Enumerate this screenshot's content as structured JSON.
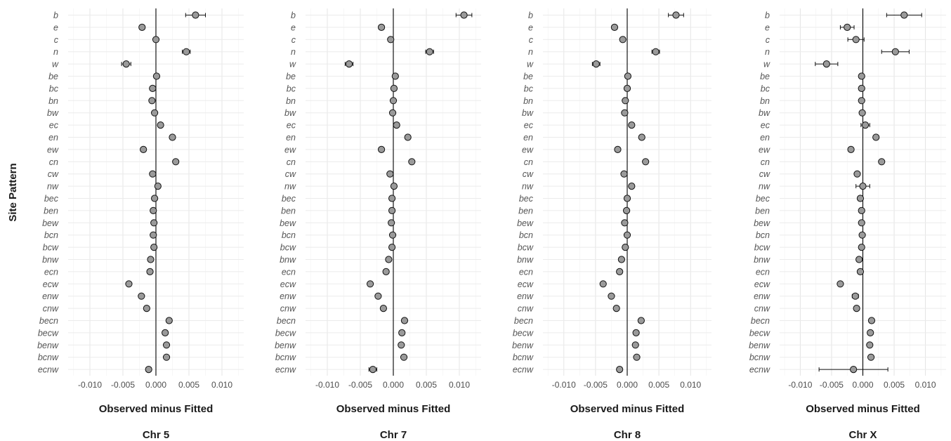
{
  "figure": {
    "ylabel": "Site Pattern",
    "xlabel": "Observed minus Fitted"
  },
  "chart_data": [
    {
      "type": "scatter",
      "title": "Chr 5",
      "xlabel": "Observed minus Fitted",
      "ylabel": "Site Pattern",
      "xlim": [
        -0.0133,
        0.0133
      ],
      "xticks": [
        -0.01,
        -0.005,
        0.0,
        0.005,
        0.01
      ],
      "xtick_labels": [
        "-0.010",
        "-0.005",
        "0.000",
        "0.005",
        "0.010"
      ],
      "grid": true,
      "categories": [
        "b",
        "e",
        "c",
        "n",
        "w",
        "be",
        "bc",
        "bn",
        "bw",
        "ec",
        "en",
        "ew",
        "cn",
        "cw",
        "nw",
        "bec",
        "ben",
        "bew",
        "bcn",
        "bcw",
        "bnw",
        "ecn",
        "ecw",
        "enw",
        "cnw",
        "becn",
        "becw",
        "benw",
        "bcnw",
        "ecnw"
      ],
      "values": [
        0.006,
        -0.0021,
        0.0,
        0.0046,
        -0.0045,
        0.0001,
        -0.0005,
        -0.0006,
        -0.0002,
        0.0007,
        0.0025,
        -0.0019,
        0.003,
        -0.0005,
        0.0003,
        -0.0002,
        -0.0004,
        -0.0003,
        -0.0004,
        -0.0003,
        -0.0008,
        -0.0009,
        -0.0041,
        -0.0022,
        -0.0014,
        0.002,
        0.0014,
        0.0016,
        0.0016,
        -0.0011
      ],
      "errors": [
        0.0015,
        0.0004,
        0.0003,
        0.0006,
        0.0007,
        0.0002,
        0.0002,
        0.0002,
        0.0002,
        0.0002,
        0.0003,
        0.0003,
        0.0003,
        0.0002,
        0.0002,
        0.0002,
        0.0002,
        0.0002,
        0.0002,
        0.0002,
        0.0002,
        0.0002,
        0.0003,
        0.0003,
        0.0003,
        0.0003,
        0.0002,
        0.0002,
        0.0002,
        0.0004
      ]
    },
    {
      "type": "scatter",
      "title": "Chr 7",
      "xlabel": "Observed minus Fitted",
      "ylabel": "Site Pattern",
      "xlim": [
        -0.0133,
        0.0133
      ],
      "xticks": [
        -0.01,
        -0.005,
        0.0,
        0.005,
        0.01
      ],
      "xtick_labels": [
        "-0.010",
        "-0.005",
        "0.000",
        "0.005",
        "0.010"
      ],
      "grid": true,
      "categories": [
        "b",
        "e",
        "c",
        "n",
        "w",
        "be",
        "bc",
        "bn",
        "bw",
        "ec",
        "en",
        "ew",
        "cn",
        "cw",
        "nw",
        "bec",
        "ben",
        "bew",
        "bcn",
        "bcw",
        "bnw",
        "ecn",
        "ecw",
        "enw",
        "cnw",
        "becn",
        "becw",
        "benw",
        "bcnw",
        "ecnw"
      ],
      "values": [
        0.0107,
        -0.0018,
        -0.0004,
        0.0055,
        -0.0067,
        0.0003,
        0.0001,
        0.0,
        -0.0001,
        0.0005,
        0.0022,
        -0.0018,
        0.0028,
        -0.0005,
        0.0001,
        -0.0002,
        -0.0002,
        -0.0003,
        -0.0001,
        -0.0002,
        -0.0007,
        -0.0011,
        -0.0035,
        -0.0023,
        -0.0015,
        0.0017,
        0.0013,
        0.0012,
        0.0016,
        -0.0031
      ],
      "errors": [
        0.0012,
        0.0004,
        0.0003,
        0.0006,
        0.0006,
        0.0002,
        0.0002,
        0.0002,
        0.0002,
        0.0002,
        0.0003,
        0.0003,
        0.0003,
        0.0002,
        0.0002,
        0.0002,
        0.0002,
        0.0002,
        0.0002,
        0.0002,
        0.0002,
        0.0002,
        0.0003,
        0.0003,
        0.0003,
        0.0003,
        0.0002,
        0.0002,
        0.0002,
        0.0006
      ]
    },
    {
      "type": "scatter",
      "title": "Chr 8",
      "xlabel": "Observed minus Fitted",
      "ylabel": "Site Pattern",
      "xlim": [
        -0.0133,
        0.0133
      ],
      "xticks": [
        -0.01,
        -0.005,
        0.0,
        0.005,
        0.01
      ],
      "xtick_labels": [
        "-0.010",
        "-0.005",
        "0.000",
        "0.005",
        "0.010"
      ],
      "grid": true,
      "categories": [
        "b",
        "e",
        "c",
        "n",
        "w",
        "be",
        "bc",
        "bn",
        "bw",
        "ec",
        "en",
        "ew",
        "cn",
        "cw",
        "nw",
        "bec",
        "ben",
        "bew",
        "bcn",
        "bcw",
        "bnw",
        "ecn",
        "ecw",
        "enw",
        "cnw",
        "becn",
        "becw",
        "benw",
        "bcnw",
        "ecnw"
      ],
      "values": [
        0.0077,
        -0.002,
        -0.0007,
        0.0045,
        -0.0049,
        0.0001,
        0.0,
        -0.0003,
        -0.0004,
        0.0007,
        0.0023,
        -0.0015,
        0.0029,
        -0.0005,
        0.0007,
        0.0,
        -0.0001,
        -0.0004,
        0.0,
        -0.0003,
        -0.0009,
        -0.0012,
        -0.0038,
        -0.0025,
        -0.0017,
        0.0022,
        0.0014,
        0.0013,
        0.0015,
        -0.0012
      ],
      "errors": [
        0.0012,
        0.0004,
        0.0004,
        0.0006,
        0.0006,
        0.0002,
        0.0002,
        0.0002,
        0.0002,
        0.0002,
        0.0003,
        0.0003,
        0.0003,
        0.0002,
        0.0002,
        0.0002,
        0.0002,
        0.0002,
        0.0002,
        0.0002,
        0.0002,
        0.0002,
        0.0003,
        0.0003,
        0.0003,
        0.0003,
        0.0002,
        0.0002,
        0.0002,
        0.0004
      ]
    },
    {
      "type": "scatter",
      "title": "Chr X",
      "xlabel": "Observed minus Fitted",
      "ylabel": "Site Pattern",
      "xlim": [
        -0.0133,
        0.0133
      ],
      "xticks": [
        -0.01,
        -0.005,
        0.0,
        0.005,
        0.01
      ],
      "xtick_labels": [
        "-0.010",
        "-0.005",
        "0.000",
        "0.005",
        "0.010"
      ],
      "grid": true,
      "categories": [
        "b",
        "e",
        "c",
        "n",
        "w",
        "be",
        "bc",
        "bn",
        "bw",
        "ec",
        "en",
        "ew",
        "cn",
        "cw",
        "nw",
        "bec",
        "ben",
        "bew",
        "bcn",
        "bcw",
        "bnw",
        "ecn",
        "ecw",
        "enw",
        "cnw",
        "becn",
        "becw",
        "benw",
        "bcnw",
        "ecnw"
      ],
      "values": [
        0.0066,
        -0.0025,
        -0.0011,
        0.0052,
        -0.0058,
        -0.0002,
        -0.0002,
        -0.0002,
        -0.0001,
        0.0004,
        0.0021,
        -0.0019,
        0.003,
        -0.0009,
        0.0,
        -0.0004,
        -0.0002,
        -0.0002,
        -0.0001,
        -0.0002,
        -0.0006,
        -0.0004,
        -0.0036,
        -0.0012,
        -0.001,
        0.0014,
        0.0012,
        0.0011,
        0.0013,
        -0.0015
      ],
      "errors": [
        0.0028,
        0.0011,
        0.0013,
        0.0022,
        0.0018,
        0.0002,
        0.0002,
        0.0002,
        0.0002,
        0.0007,
        0.0003,
        0.0003,
        0.0003,
        0.0002,
        0.0011,
        0.0002,
        0.0002,
        0.0002,
        0.0002,
        0.0002,
        0.0002,
        0.0002,
        0.0003,
        0.0005,
        0.0004,
        0.0003,
        0.0002,
        0.0002,
        0.0002,
        0.0055
      ]
    }
  ]
}
